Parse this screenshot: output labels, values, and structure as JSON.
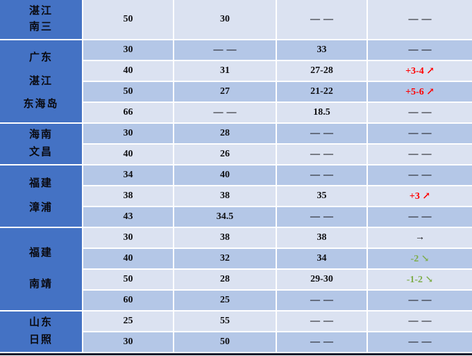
{
  "colors": {
    "region_bg": "#4472c4",
    "row_light": "#dbe2f1",
    "row_medium": "#b4c7e7",
    "grid_line": "#ffffff",
    "text": "#0f0f12",
    "trend_up_red": "#ff0000",
    "trend_down_green": "#7ead4a",
    "bottom_edge": "#10182b"
  },
  "table": {
    "placeholder": "——",
    "groups": [
      {
        "region_lines": [
          "湛江",
          "南三"
        ],
        "rows": [
          {
            "values": [
              "50",
              "30",
              "——",
              "——"
            ],
            "col4_color": "default"
          }
        ]
      },
      {
        "region_lines": [
          "广东",
          "湛江",
          "东海岛"
        ],
        "rows": [
          {
            "values": [
              "30",
              "——",
              "33",
              "——"
            ],
            "col4_color": "default"
          },
          {
            "values": [
              "40",
              "31",
              "27-28",
              "+3-4 ↗"
            ],
            "col4_color": "red"
          },
          {
            "values": [
              "50",
              "27",
              "21-22",
              "+5-6 ↗"
            ],
            "col4_color": "red"
          },
          {
            "values": [
              "66",
              "——",
              "18.5",
              "——"
            ],
            "col4_color": "default"
          }
        ]
      },
      {
        "region_lines": [
          "海南",
          "文昌"
        ],
        "rows": [
          {
            "values": [
              "30",
              "28",
              "——",
              "——"
            ],
            "col4_color": "default"
          },
          {
            "values": [
              "40",
              "26",
              "——",
              "——"
            ],
            "col4_color": "default"
          }
        ]
      },
      {
        "region_lines": [
          "福建",
          "漳浦"
        ],
        "rows": [
          {
            "values": [
              "34",
              "40",
              "——",
              "——"
            ],
            "col4_color": "default"
          },
          {
            "values": [
              "38",
              "38",
              "35",
              "+3 ↗"
            ],
            "col4_color": "red"
          },
          {
            "values": [
              "43",
              "34.5",
              "——",
              "——"
            ],
            "col4_color": "default"
          }
        ]
      },
      {
        "region_lines": [
          "福建",
          "南靖"
        ],
        "rows": [
          {
            "values": [
              "30",
              "38",
              "38",
              "→"
            ],
            "col4_color": "default"
          },
          {
            "values": [
              "40",
              "32",
              "34",
              "-2 ↘"
            ],
            "col4_color": "green"
          },
          {
            "values": [
              "50",
              "28",
              "29-30",
              "-1-2 ↘"
            ],
            "col4_color": "green"
          },
          {
            "values": [
              "60",
              "25",
              "——",
              "——"
            ],
            "col4_color": "default"
          }
        ]
      },
      {
        "region_lines": [
          "山东",
          "日照"
        ],
        "rows": [
          {
            "values": [
              "25",
              "55",
              "——",
              "——"
            ],
            "col4_color": "default"
          },
          {
            "values": [
              "30",
              "50",
              "——",
              "——"
            ],
            "col4_color": "default"
          }
        ]
      }
    ]
  }
}
